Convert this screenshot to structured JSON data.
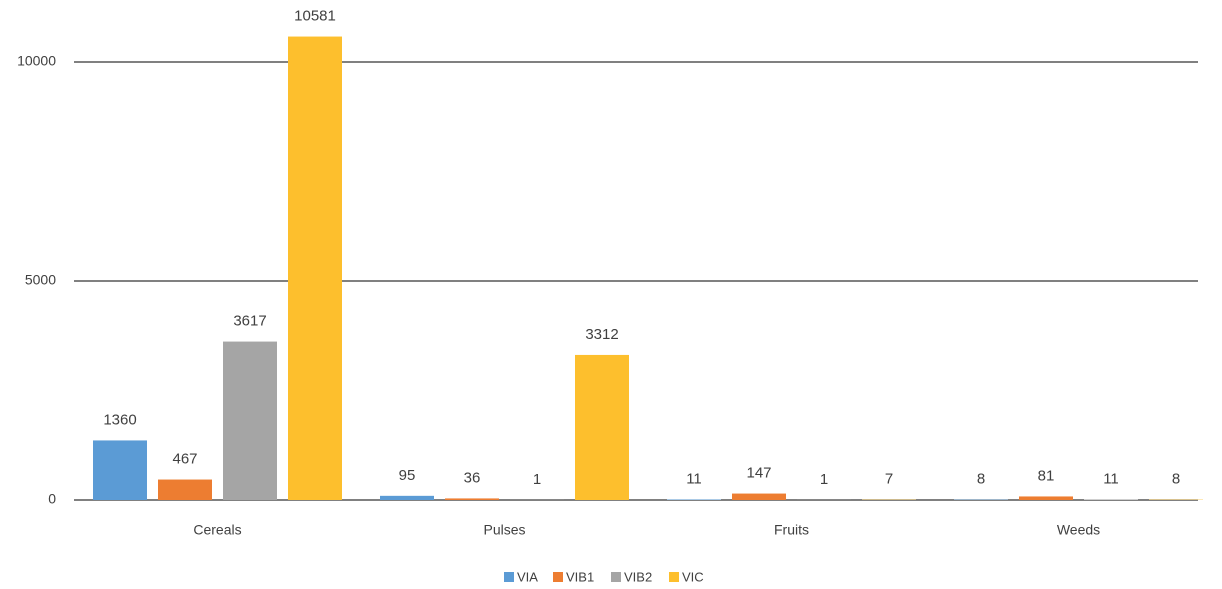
{
  "chart_data": {
    "type": "bar",
    "categories": [
      "Cereals",
      "Pulses",
      "Fruits",
      "Weeds"
    ],
    "series": [
      {
        "name": "VIA",
        "color": "#5b9bd5",
        "values": [
          1360,
          95,
          11,
          8
        ]
      },
      {
        "name": "VIB1",
        "color": "#ed7d31",
        "values": [
          467,
          36,
          147,
          81
        ]
      },
      {
        "name": "VIB2",
        "color": "#a5a5a5",
        "values": [
          3617,
          1,
          1,
          11
        ]
      },
      {
        "name": "VIC",
        "color": "#fdbf2d",
        "values": [
          10581,
          3312,
          7,
          8
        ]
      }
    ],
    "ylim": [
      0,
      11000
    ],
    "yticks": [
      0,
      5000,
      10000
    ],
    "grid": true,
    "legend": "bottom"
  }
}
